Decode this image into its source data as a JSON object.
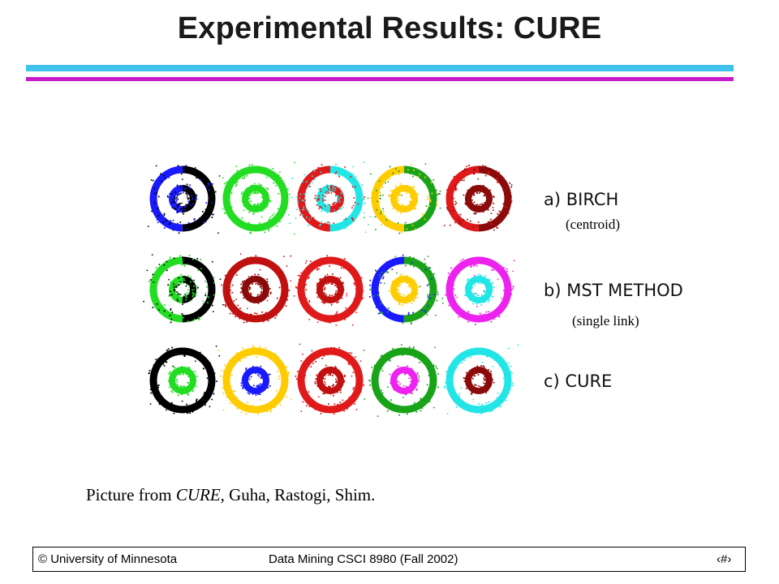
{
  "slide": {
    "title": "Experimental Results: CURE",
    "caption_prefix": "Picture from ",
    "caption_emph": "CURE",
    "caption_suffix": ", Guha, Rastogi, Shim."
  },
  "figure": {
    "rows": [
      {
        "label": "a) BIRCH",
        "note": "(centroid)",
        "rings": [
          {
            "outer": [
              "#000000",
              "#1a1aff"
            ],
            "inner": [
              "#000000",
              "#1a1aff"
            ]
          },
          {
            "outer": [
              "#22dd22"
            ],
            "inner": [
              "#22dd22"
            ]
          },
          {
            "outer": [
              "#22e5e5",
              "#e01a1a"
            ],
            "inner": [
              "#e01a1a",
              "#22e5e5"
            ]
          },
          {
            "outer": [
              "#19a319",
              "#ffcc00"
            ],
            "inner": [
              "#ffcc00"
            ]
          },
          {
            "outer": [
              "#8b0a0a",
              "#e01a1a"
            ],
            "inner": [
              "#8b0a0a"
            ]
          }
        ]
      },
      {
        "label": "b) MST METHOD",
        "note": "(single link)",
        "rings": [
          {
            "outer": [
              "#000000",
              "#22dd22"
            ],
            "inner": [
              "#000000",
              "#22dd22"
            ]
          },
          {
            "outer": [
              "#c01010"
            ],
            "inner": [
              "#8b0a0a"
            ]
          },
          {
            "outer": [
              "#e01a1a"
            ],
            "inner": [
              "#c01010"
            ]
          },
          {
            "outer": [
              "#19a319",
              "#1a1aff"
            ],
            "inner": [
              "#ffcc00"
            ]
          },
          {
            "outer": [
              "#ee22ee"
            ],
            "inner": [
              "#22e5e5"
            ]
          }
        ]
      },
      {
        "label": "c) CURE",
        "note": "",
        "rings": [
          {
            "outer": [
              "#000000"
            ],
            "inner": [
              "#22dd22"
            ]
          },
          {
            "outer": [
              "#ffcc00"
            ],
            "inner": [
              "#1a1aff"
            ]
          },
          {
            "outer": [
              "#e01a1a"
            ],
            "inner": [
              "#c01010"
            ]
          },
          {
            "outer": [
              "#19a319"
            ],
            "inner": [
              "#ee22ee"
            ]
          },
          {
            "outer": [
              "#22e5e5"
            ],
            "inner": [
              "#8b0a0a"
            ]
          }
        ]
      }
    ]
  },
  "footer": {
    "left": "© University of Minnesota",
    "center": "Data Mining  CSCI 8980 (Fall 2002)",
    "right": "‹#›"
  }
}
